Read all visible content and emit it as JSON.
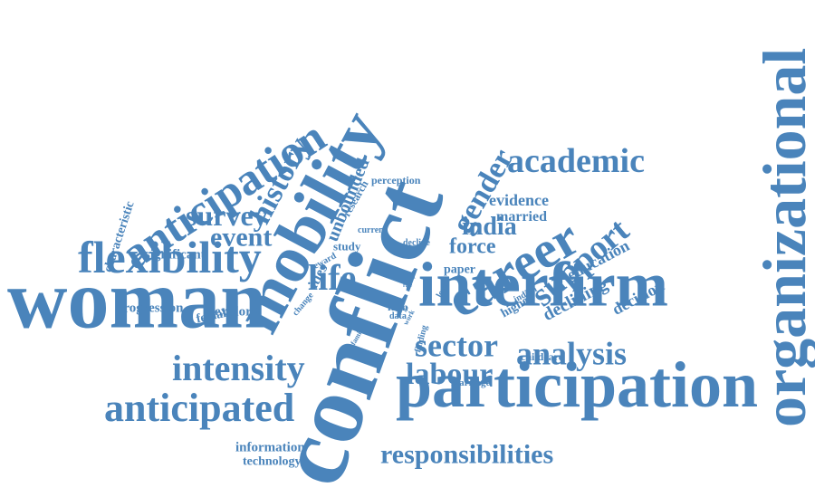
{
  "colors": {
    "word": "#4a84bb",
    "background": "#ffffff"
  },
  "words": [
    "woman",
    "conflict",
    "interfirm",
    "participation",
    "organizational",
    "mobility",
    "anticipation",
    "flexibility",
    "career",
    "academic",
    "anticipated",
    "intensity",
    "sector",
    "analysis",
    "support",
    "labour",
    "responsibilities",
    "gender",
    "history",
    "survey",
    "event",
    "life",
    "india",
    "force",
    "evidence",
    "married",
    "education",
    "perception",
    "declining",
    "decision",
    "unbounded",
    "research",
    "characteristic",
    "significant",
    "progression",
    "female",
    "explore",
    "study",
    "ities",
    "current",
    "reward",
    "change",
    "decline",
    "paper",
    "effect",
    "rate",
    "level",
    "higher",
    "indian",
    "firm",
    "data",
    "work",
    "family",
    "finding",
    "childcare",
    "marriage",
    "information",
    "technology",
    "go"
  ]
}
